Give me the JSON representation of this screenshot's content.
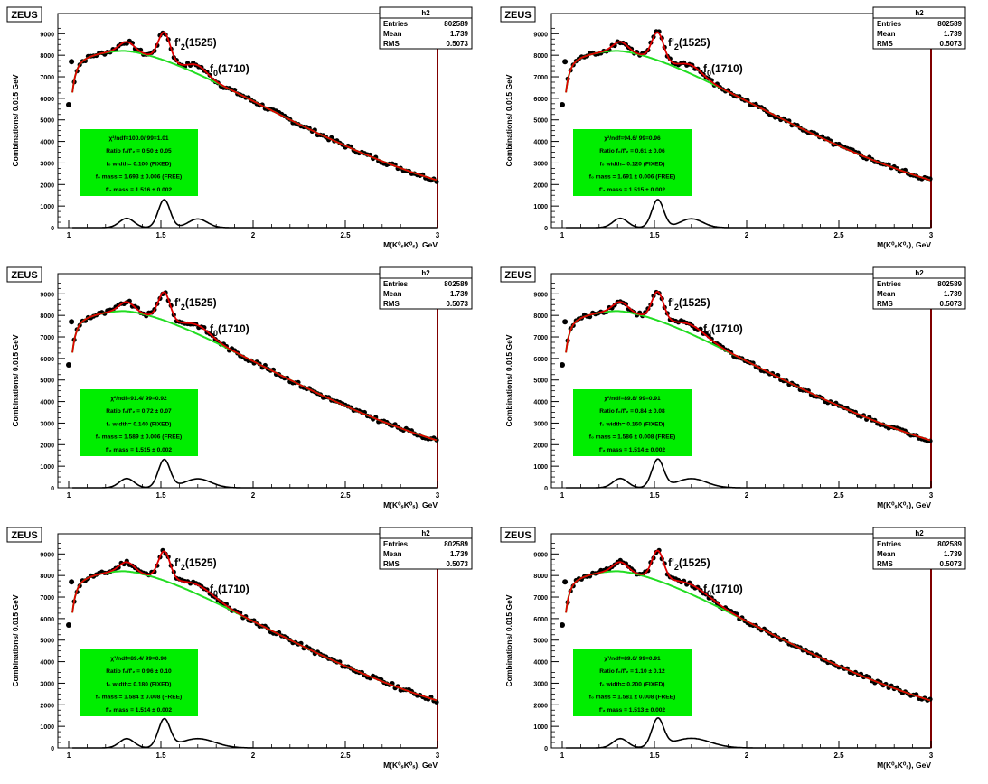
{
  "figure": {
    "experiment_label": "ZEUS",
    "stats_title": "h2",
    "stats": [
      {
        "label": "Entries",
        "value": "802589"
      },
      {
        "label": "Mean",
        "value": "1.739"
      },
      {
        "label": "RMS",
        "value": "0.5073"
      }
    ],
    "peak_label_f2": {
      "main": "f'",
      "sub": "2",
      "tail": "(1525)"
    },
    "peak_label_f0": {
      "main": "f",
      "sub": "0",
      "tail": "(1710)"
    }
  },
  "colors": {
    "data_points": "#000000",
    "total_fit": "#e00000",
    "background_fit": "#22dd22",
    "info_box": "#00ee00",
    "frame_right": "#800000"
  },
  "chart_data": [
    {
      "type": "scatter",
      "xlabel": "M(K⁰ₛK⁰ₛ), GeV",
      "ylabel": "Combinations/ 0.015 GeV",
      "xlim": [
        1,
        3
      ],
      "ylim": [
        0,
        9600
      ],
      "xticks": [
        1,
        1.5,
        2,
        2.5,
        3
      ],
      "xtick_labels": [
        "1",
        "1.5",
        "2",
        "2.5",
        "3"
      ],
      "yticks": [
        0,
        1000,
        2000,
        3000,
        4000,
        5000,
        6000,
        7000,
        8000,
        9000
      ],
      "ytick_labels": [
        "0",
        "1000",
        "2000",
        "3000",
        "4000",
        "5000",
        "6000",
        "7000",
        "8000",
        "9000"
      ],
      "fit_info": [
        "χ²/ndf=100.0/ 99=1.01",
        "Ratio f₀/f'₂ = 0.50 ± 0.05",
        "f₀ width= 0.100 (FIXED)",
        "f₀ mass = 1.693 ± 0.006 (FREE)",
        "f'₂ mass = 1.516 ± 0.002"
      ],
      "f0_ratio": 0.5,
      "f0_width": 0.1
    },
    {
      "type": "scatter",
      "xlabel": "M(K⁰ₛK⁰ₛ), GeV",
      "ylabel": "Combinations/ 0.015 GeV",
      "xlim": [
        1,
        3
      ],
      "ylim": [
        0,
        9600
      ],
      "xticks": [
        1,
        1.5,
        2,
        2.5,
        3
      ],
      "xtick_labels": [
        "1",
        "1.5",
        "2",
        "2.5",
        "3"
      ],
      "yticks": [
        0,
        1000,
        2000,
        3000,
        4000,
        5000,
        6000,
        7000,
        8000,
        9000
      ],
      "ytick_labels": [
        "0",
        "1000",
        "2000",
        "3000",
        "4000",
        "5000",
        "6000",
        "7000",
        "8000",
        "9000"
      ],
      "fit_info": [
        "χ²/ndf=94.6/ 99=0.96",
        "Ratio f₀/f'₂ = 0.61 ± 0.06",
        "f₀ width= 0.120 (FIXED)",
        "f₀ mass = 1.691 ± 0.006 (FREE)",
        "f'₂ mass = 1.515 ± 0.002"
      ],
      "f0_ratio": 0.61,
      "f0_width": 0.12
    },
    {
      "type": "scatter",
      "xlabel": "M(K⁰ₛK⁰ₛ), GeV",
      "ylabel": "Combinations/ 0.015 GeV",
      "xlim": [
        1,
        3
      ],
      "ylim": [
        0,
        9600
      ],
      "xticks": [
        1,
        1.5,
        2,
        2.5,
        3
      ],
      "xtick_labels": [
        "1",
        "1.5",
        "2",
        "2.5",
        "3"
      ],
      "yticks": [
        0,
        1000,
        2000,
        3000,
        4000,
        5000,
        6000,
        7000,
        8000,
        9000
      ],
      "ytick_labels": [
        "0",
        "1000",
        "2000",
        "3000",
        "4000",
        "5000",
        "6000",
        "7000",
        "8000",
        "9000"
      ],
      "fit_info": [
        "χ²/ndf=91.4/ 99=0.92",
        "Ratio f₀/f'₂ = 0.72 ± 0.07",
        "f₀ width= 0.140 (FIXED)",
        "f₀ mass = 1.589 ± 0.006 (FREE)",
        "f'₂ mass = 1.515 ± 0.002"
      ],
      "f0_ratio": 0.72,
      "f0_width": 0.14
    },
    {
      "type": "scatter",
      "xlabel": "M(K⁰ₛK⁰ₛ), GeV",
      "ylabel": "Combinations/ 0.015 GeV",
      "xlim": [
        1,
        3
      ],
      "ylim": [
        0,
        9600
      ],
      "xticks": [
        1,
        1.5,
        2,
        2.5,
        3
      ],
      "xtick_labels": [
        "1",
        "1.5",
        "2",
        "2.5",
        "3"
      ],
      "yticks": [
        0,
        1000,
        2000,
        3000,
        4000,
        5000,
        6000,
        7000,
        8000,
        9000
      ],
      "ytick_labels": [
        "0",
        "1000",
        "2000",
        "3000",
        "4000",
        "5000",
        "6000",
        "7000",
        "8000",
        "9000"
      ],
      "fit_info": [
        "χ²/ndf=89.8/ 99=0.91",
        "Ratio f₀/f'₂ = 0.84 ± 0.08",
        "f₀ width= 0.160 (FIXED)",
        "f₀ mass = 1.586 ± 0.008 (FREE)",
        "f'₂ mass = 1.514 ± 0.002"
      ],
      "f0_ratio": 0.84,
      "f0_width": 0.16
    },
    {
      "type": "scatter",
      "xlabel": "M(K⁰ₛK⁰ₛ), GeV",
      "ylabel": "Combinations/ 0.015 GeV",
      "xlim": [
        1,
        3
      ],
      "ylim": [
        0,
        9600
      ],
      "xticks": [
        1,
        1.5,
        2,
        2.5,
        3
      ],
      "xtick_labels": [
        "1",
        "1.5",
        "2",
        "2.5",
        "3"
      ],
      "yticks": [
        0,
        1000,
        2000,
        3000,
        4000,
        5000,
        6000,
        7000,
        8000,
        9000
      ],
      "ytick_labels": [
        "0",
        "1000",
        "2000",
        "3000",
        "4000",
        "5000",
        "6000",
        "7000",
        "8000",
        "9000"
      ],
      "fit_info": [
        "χ²/ndf=89.4/ 99=0.90",
        "Ratio f₀/f'₂ = 0.96 ± 0.10",
        "f₀ width= 0.180 (FIXED)",
        "f₀ mass = 1.584 ± 0.008 (FREE)",
        "f'₂ mass = 1.514 ± 0.002"
      ],
      "f0_ratio": 0.96,
      "f0_width": 0.18
    },
    {
      "type": "scatter",
      "xlabel": "M(K⁰ₛK⁰ₛ), GeV",
      "ylabel": "Combinations/ 0.015 GeV",
      "xlim": [
        1,
        3
      ],
      "ylim": [
        0,
        9600
      ],
      "xticks": [
        1,
        1.5,
        2,
        2.5,
        3
      ],
      "xtick_labels": [
        "1",
        "1.5",
        "2",
        "2.5",
        "3"
      ],
      "yticks": [
        0,
        1000,
        2000,
        3000,
        4000,
        5000,
        6000,
        7000,
        8000,
        9000
      ],
      "ytick_labels": [
        "0",
        "1000",
        "2000",
        "3000",
        "4000",
        "5000",
        "6000",
        "7000",
        "8000",
        "9000"
      ],
      "fit_info": [
        "χ²/ndf=89.6/ 99=0.91",
        "Ratio f₀/f'₂ = 1.10 ± 0.12",
        "f₀ width= 0.200 (FIXED)",
        "f₀ mass = 1.581 ± 0.008 (FREE)",
        "f'₂ mass = 1.513 ± 0.002"
      ],
      "f0_ratio": 1.1,
      "f0_width": 0.2
    }
  ]
}
